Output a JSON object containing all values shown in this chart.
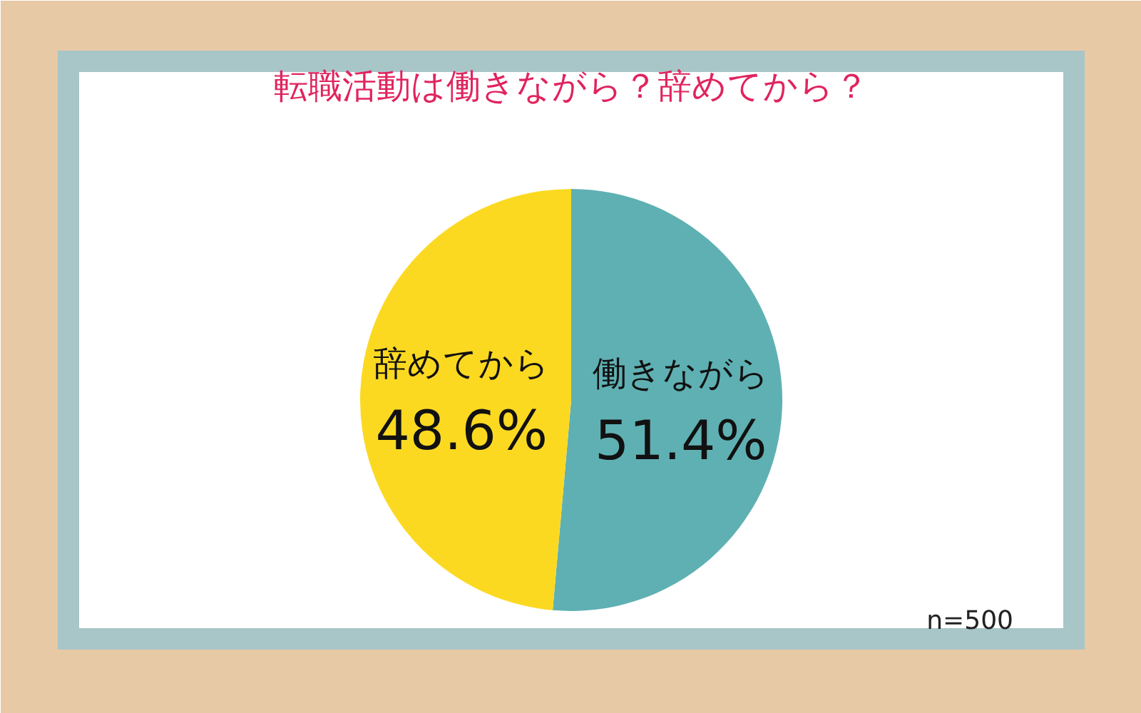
{
  "chart_data": {
    "type": "pie",
    "title": "転職活動は働きながら？辞めてから？",
    "categories": [
      "働きながら",
      "辞めてから"
    ],
    "values": [
      51.4,
      48.6
    ],
    "colors": [
      "#5fb0b3",
      "#fcd921"
    ],
    "value_labels": [
      "51.4%",
      "48.6%"
    ],
    "annotations": [
      "n=500"
    ]
  }
}
